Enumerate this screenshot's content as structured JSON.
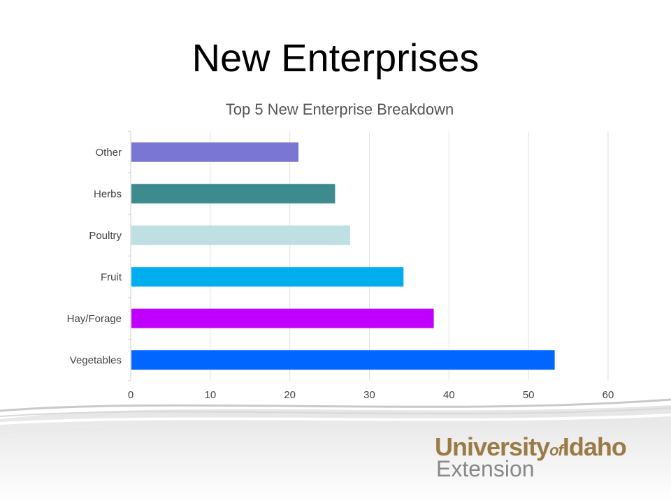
{
  "slide": {
    "title": "New Enterprises"
  },
  "logo": {
    "university": "University",
    "of": "of",
    "idaho": "Idaho",
    "extension": "Extension",
    "brand_gold": "#9a7a45",
    "brand_gray": "#888888"
  },
  "chart_data": {
    "type": "bar",
    "orientation": "horizontal",
    "title": "Top 5 New Enterprise Breakdown",
    "categories": [
      "Other",
      "Herbs",
      "Poultry",
      "Fruit",
      "Hay/Forage",
      "Vegetables"
    ],
    "values": [
      21,
      25.6,
      27.5,
      34.2,
      38,
      53.2
    ],
    "colors": [
      "#7a76d4",
      "#3d8a8f",
      "#bfe0e3",
      "#00aeef",
      "#c000ff",
      "#0066ff"
    ],
    "xlim": [
      0,
      60
    ],
    "xticks": [
      0,
      10,
      20,
      30,
      40,
      50,
      60
    ],
    "xlabel": "",
    "ylabel": "",
    "grid": "vertical"
  }
}
